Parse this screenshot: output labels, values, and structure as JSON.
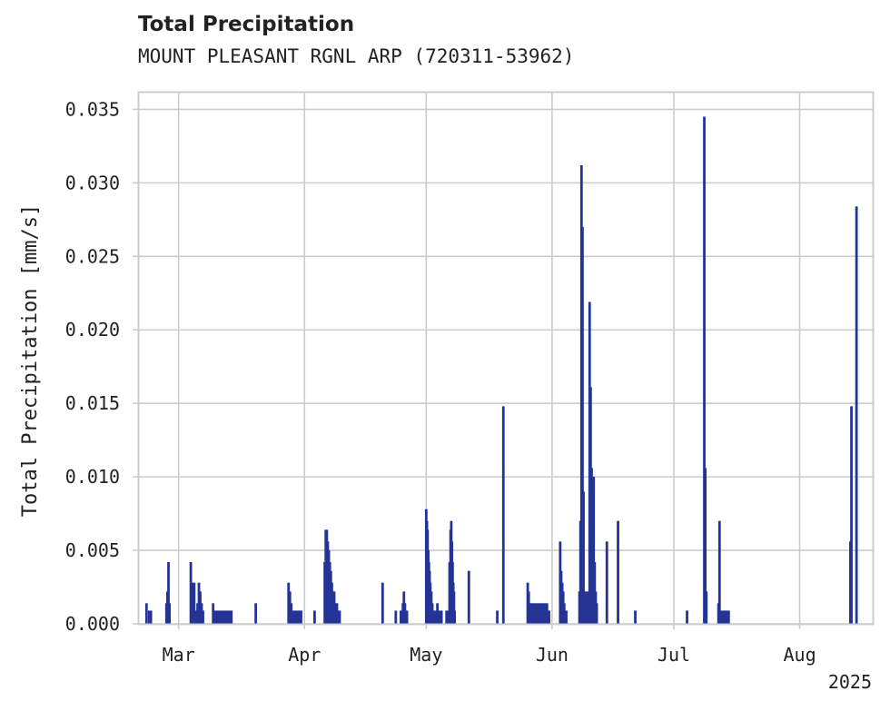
{
  "chart_data": {
    "type": "bar",
    "title": "Total Precipitation",
    "subtitle": "MOUNT PLEASANT RGNL ARP (720311-53962)",
    "ylabel": "Total Precipitation [mm/s]",
    "xlabel": "",
    "year_label": "2025",
    "ylim": [
      0,
      0.0362
    ],
    "xlim": [
      "2025-02-19",
      "2025-08-19"
    ],
    "grid": true,
    "color": "#253494",
    "y_ticks": [
      "0.000",
      "0.005",
      "0.010",
      "0.015",
      "0.020",
      "0.025",
      "0.030",
      "0.035"
    ],
    "x_ticks": [
      {
        "date": "2025-03-01",
        "label": "Mar"
      },
      {
        "date": "2025-04-01",
        "label": "Apr"
      },
      {
        "date": "2025-05-01",
        "label": "May"
      },
      {
        "date": "2025-06-01",
        "label": "Jun"
      },
      {
        "date": "2025-07-01",
        "label": "Jul"
      },
      {
        "date": "2025-08-01",
        "label": "Aug"
      }
    ],
    "series": [
      {
        "points": [
          [
            "2025-02-21T02:00",
            0.0014
          ],
          [
            "2025-02-21T18:00",
            0.0009
          ],
          [
            "2025-02-22T04:00",
            0.0009
          ],
          [
            "2025-02-26T00:00",
            0.0014
          ],
          [
            "2025-02-26T06:00",
            0.0022
          ],
          [
            "2025-02-26T12:00",
            0.0042
          ],
          [
            "2025-02-26T18:00",
            0.0014
          ],
          [
            "2025-03-04T00:00",
            0.0042
          ],
          [
            "2025-03-04T08:00",
            0.0028
          ],
          [
            "2025-03-04T20:00",
            0.0028
          ],
          [
            "2025-03-05T04:00",
            0.0009
          ],
          [
            "2025-03-05T16:00",
            0.0014
          ],
          [
            "2025-03-06T00:00",
            0.0028
          ],
          [
            "2025-03-06T08:00",
            0.0022
          ],
          [
            "2025-03-06T16:00",
            0.0014
          ],
          [
            "2025-03-07T00:00",
            0.0009
          ],
          [
            "2025-03-09T12:00",
            0.0014
          ],
          [
            "2025-03-10T00:00",
            0.0009
          ],
          [
            "2025-03-10T12:00",
            0.0009
          ],
          [
            "2025-03-11T00:00",
            0.0009
          ],
          [
            "2025-03-11T12:00",
            0.0009
          ],
          [
            "2025-03-12T00:00",
            0.0009
          ],
          [
            "2025-03-12T12:00",
            0.0009
          ],
          [
            "2025-03-13T00:00",
            0.0009
          ],
          [
            "2025-03-13T12:00",
            0.0009
          ],
          [
            "2025-03-14T00:00",
            0.0009
          ],
          [
            "2025-03-20T00:00",
            0.0014
          ],
          [
            "2025-03-28T02:00",
            0.0028
          ],
          [
            "2025-03-28T10:00",
            0.0022
          ],
          [
            "2025-03-28T18:00",
            0.0014
          ],
          [
            "2025-03-29T04:00",
            0.0009
          ],
          [
            "2025-03-29T16:00",
            0.0009
          ],
          [
            "2025-03-30T04:00",
            0.0009
          ],
          [
            "2025-03-30T16:00",
            0.0009
          ],
          [
            "2025-03-31T04:00",
            0.0009
          ],
          [
            "2025-04-03T12:00",
            0.0009
          ],
          [
            "2025-04-06T00:00",
            0.0042
          ],
          [
            "2025-04-06T06:00",
            0.0064
          ],
          [
            "2025-04-06T12:00",
            0.0064
          ],
          [
            "2025-04-06T18:00",
            0.0056
          ],
          [
            "2025-04-07T00:00",
            0.005
          ],
          [
            "2025-04-07T06:00",
            0.0042
          ],
          [
            "2025-04-07T12:00",
            0.0036
          ],
          [
            "2025-04-07T18:00",
            0.0028
          ],
          [
            "2025-04-08T00:00",
            0.0022
          ],
          [
            "2025-04-08T08:00",
            0.0022
          ],
          [
            "2025-04-08T16:00",
            0.0014
          ],
          [
            "2025-04-09T00:00",
            0.0014
          ],
          [
            "2025-04-09T08:00",
            0.0009
          ],
          [
            "2025-04-09T16:00",
            0.0009
          ],
          [
            "2025-04-20T06:00",
            0.0028
          ],
          [
            "2025-04-23T12:00",
            0.0009
          ],
          [
            "2025-04-24T18:00",
            0.0009
          ],
          [
            "2025-04-25T06:00",
            0.0014
          ],
          [
            "2025-04-25T12:00",
            0.0022
          ],
          [
            "2025-04-25T18:00",
            0.0014
          ],
          [
            "2025-04-26T06:00",
            0.0009
          ],
          [
            "2025-05-01T00:00",
            0.0078
          ],
          [
            "2025-05-01T04:00",
            0.007
          ],
          [
            "2025-05-01T08:00",
            0.0064
          ],
          [
            "2025-05-01T12:00",
            0.005
          ],
          [
            "2025-05-01T16:00",
            0.0042
          ],
          [
            "2025-05-01T20:00",
            0.0036
          ],
          [
            "2025-05-02T00:00",
            0.0028
          ],
          [
            "2025-05-02T06:00",
            0.0022
          ],
          [
            "2025-05-02T12:00",
            0.0014
          ],
          [
            "2025-05-02T18:00",
            0.0009
          ],
          [
            "2025-05-03T06:00",
            0.0009
          ],
          [
            "2025-05-03T18:00",
            0.0014
          ],
          [
            "2025-05-04T06:00",
            0.0009
          ],
          [
            "2025-05-04T18:00",
            0.0009
          ],
          [
            "2025-05-06T00:00",
            0.0009
          ],
          [
            "2025-05-06T12:00",
            0.0009
          ],
          [
            "2025-05-06T18:00",
            0.0042
          ],
          [
            "2025-05-07T00:00",
            0.0064
          ],
          [
            "2025-05-07T04:00",
            0.007
          ],
          [
            "2025-05-07T08:00",
            0.0056
          ],
          [
            "2025-05-07T12:00",
            0.0042
          ],
          [
            "2025-05-07T16:00",
            0.0028
          ],
          [
            "2025-05-07T20:00",
            0.0022
          ],
          [
            "2025-05-08T00:00",
            0.0009
          ],
          [
            "2025-05-11T12:00",
            0.0036
          ],
          [
            "2025-05-18T12:00",
            0.0009
          ],
          [
            "2025-05-20T00:00",
            0.0148
          ],
          [
            "2025-05-26T00:00",
            0.0028
          ],
          [
            "2025-05-26T06:00",
            0.0022
          ],
          [
            "2025-05-26T12:00",
            0.0014
          ],
          [
            "2025-05-26T18:00",
            0.0014
          ],
          [
            "2025-05-27T06:00",
            0.0014
          ],
          [
            "2025-05-27T18:00",
            0.0014
          ],
          [
            "2025-05-28T06:00",
            0.0014
          ],
          [
            "2025-05-28T18:00",
            0.0014
          ],
          [
            "2025-05-29T06:00",
            0.0014
          ],
          [
            "2025-05-29T18:00",
            0.0014
          ],
          [
            "2025-05-30T06:00",
            0.0014
          ],
          [
            "2025-05-30T18:00",
            0.0014
          ],
          [
            "2025-05-31T06:00",
            0.0009
          ],
          [
            "2025-06-03T00:00",
            0.0056
          ],
          [
            "2025-06-03T06:00",
            0.0036
          ],
          [
            "2025-06-03T12:00",
            0.0028
          ],
          [
            "2025-06-03T18:00",
            0.0022
          ],
          [
            "2025-06-04T00:00",
            0.0014
          ],
          [
            "2025-06-04T12:00",
            0.0009
          ],
          [
            "2025-06-07T18:00",
            0.0022
          ],
          [
            "2025-06-08T00:00",
            0.007
          ],
          [
            "2025-06-08T06:00",
            0.0312
          ],
          [
            "2025-06-08T12:00",
            0.027
          ],
          [
            "2025-06-08T18:00",
            0.009
          ],
          [
            "2025-06-09T06:00",
            0.0022
          ],
          [
            "2025-06-09T18:00",
            0.0022
          ],
          [
            "2025-06-10T06:00",
            0.0219
          ],
          [
            "2025-06-10T12:00",
            0.0161
          ],
          [
            "2025-06-10T18:00",
            0.0106
          ],
          [
            "2025-06-11T00:00",
            0.01
          ],
          [
            "2025-06-11T06:00",
            0.01
          ],
          [
            "2025-06-11T12:00",
            0.0042
          ],
          [
            "2025-06-11T18:00",
            0.0022
          ],
          [
            "2025-06-12T00:00",
            0.0014
          ],
          [
            "2025-06-14T12:00",
            0.0056
          ],
          [
            "2025-06-17T06:00",
            0.007
          ],
          [
            "2025-06-21T12:00",
            0.0009
          ],
          [
            "2025-07-04T06:00",
            0.0009
          ],
          [
            "2025-07-08T12:00",
            0.0345
          ],
          [
            "2025-07-08T18:00",
            0.0106
          ],
          [
            "2025-07-09T00:00",
            0.0022
          ],
          [
            "2025-07-12T00:00",
            0.0014
          ],
          [
            "2025-07-12T06:00",
            0.007
          ],
          [
            "2025-07-12T12:00",
            0.0009
          ],
          [
            "2025-07-13T00:00",
            0.0009
          ],
          [
            "2025-07-13T12:00",
            0.0009
          ],
          [
            "2025-07-14T00:00",
            0.0009
          ],
          [
            "2025-07-14T12:00",
            0.0009
          ],
          [
            "2025-08-13T12:00",
            0.0056
          ],
          [
            "2025-08-13T18:00",
            0.0148
          ],
          [
            "2025-08-15T00:00",
            0.0284
          ]
        ]
      }
    ]
  }
}
